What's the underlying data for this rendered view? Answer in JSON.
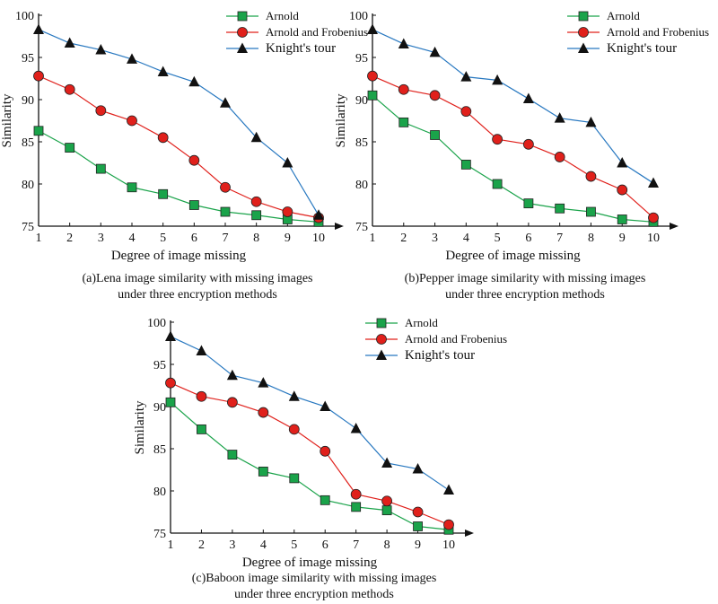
{
  "chart_data": [
    {
      "type": "line",
      "x": [
        1,
        2,
        3,
        4,
        5,
        6,
        7,
        8,
        9,
        10
      ],
      "xlabel": "Degree of image missing",
      "ylabel": "Similarity",
      "ylim": [
        75,
        100
      ],
      "yticks": [
        75,
        80,
        85,
        90,
        95,
        100
      ],
      "legend_position": "top-right",
      "caption_line1": "(a)Lena image similarity with missing images",
      "caption_line2": "under three encryption methods",
      "series": [
        {
          "name": "Arnold",
          "marker": "square",
          "color": "#1aa34a",
          "values": [
            86.3,
            84.3,
            81.8,
            79.6,
            78.8,
            77.5,
            76.7,
            76.3,
            75.8,
            75.5
          ]
        },
        {
          "name": "Arnold and Frobenius",
          "marker": "circle",
          "color": "#e0201b",
          "values": [
            92.8,
            91.2,
            88.7,
            87.5,
            85.5,
            82.8,
            79.6,
            77.9,
            76.7,
            76.0
          ]
        },
        {
          "name": "Knight's tour",
          "marker": "triangle",
          "color": "#2878c0",
          "values": [
            98.3,
            96.7,
            95.9,
            94.8,
            93.3,
            92.1,
            89.6,
            85.5,
            82.5,
            76.3
          ]
        }
      ]
    },
    {
      "type": "line",
      "x": [
        1,
        2,
        3,
        4,
        5,
        6,
        7,
        8,
        9,
        10
      ],
      "xlabel": "Degree of image missing",
      "ylabel": "Similarity",
      "ylim": [
        75,
        100
      ],
      "yticks": [
        75,
        80,
        85,
        90,
        95,
        100
      ],
      "legend_position": "top-right",
      "caption_line1": "(b)Pepper image similarity with missing images",
      "caption_line2": "under three encryption methods",
      "series": [
        {
          "name": "Arnold",
          "marker": "square",
          "color": "#1aa34a",
          "values": [
            90.5,
            87.3,
            85.8,
            82.3,
            80.0,
            77.7,
            77.1,
            76.7,
            75.8,
            75.5
          ]
        },
        {
          "name": "Arnold and Frobenius",
          "marker": "circle",
          "color": "#e0201b",
          "values": [
            92.8,
            91.2,
            90.5,
            88.6,
            85.3,
            84.7,
            83.2,
            80.9,
            79.3,
            76.0
          ]
        },
        {
          "name": "Knight's tour",
          "marker": "triangle",
          "color": "#2878c0",
          "values": [
            98.3,
            96.6,
            95.6,
            92.7,
            92.3,
            90.1,
            87.8,
            87.3,
            82.5,
            80.1
          ]
        }
      ]
    },
    {
      "type": "line",
      "x": [
        1,
        2,
        3,
        4,
        5,
        6,
        7,
        8,
        9,
        10
      ],
      "xlabel": "Degree of image missing",
      "ylabel": "Similarity",
      "ylim": [
        75,
        100
      ],
      "yticks": [
        75,
        80,
        85,
        90,
        95,
        100
      ],
      "legend_position": "top-right",
      "caption_line1": "(c)Baboon image similarity with missing images",
      "caption_line2": "under three encryption methods",
      "series": [
        {
          "name": "Arnold",
          "marker": "square",
          "color": "#1aa34a",
          "values": [
            90.5,
            87.3,
            84.3,
            82.3,
            81.5,
            78.9,
            78.1,
            77.7,
            75.8,
            75.4
          ]
        },
        {
          "name": "Arnold and Frobenius",
          "marker": "circle",
          "color": "#e0201b",
          "values": [
            92.8,
            91.2,
            90.5,
            89.3,
            87.3,
            84.7,
            79.6,
            78.8,
            77.5,
            76.0
          ]
        },
        {
          "name": "Knight's tour",
          "marker": "triangle",
          "color": "#2878c0",
          "values": [
            98.3,
            96.6,
            93.7,
            92.8,
            91.2,
            90.0,
            87.4,
            83.3,
            82.6,
            80.1
          ]
        }
      ]
    }
  ]
}
